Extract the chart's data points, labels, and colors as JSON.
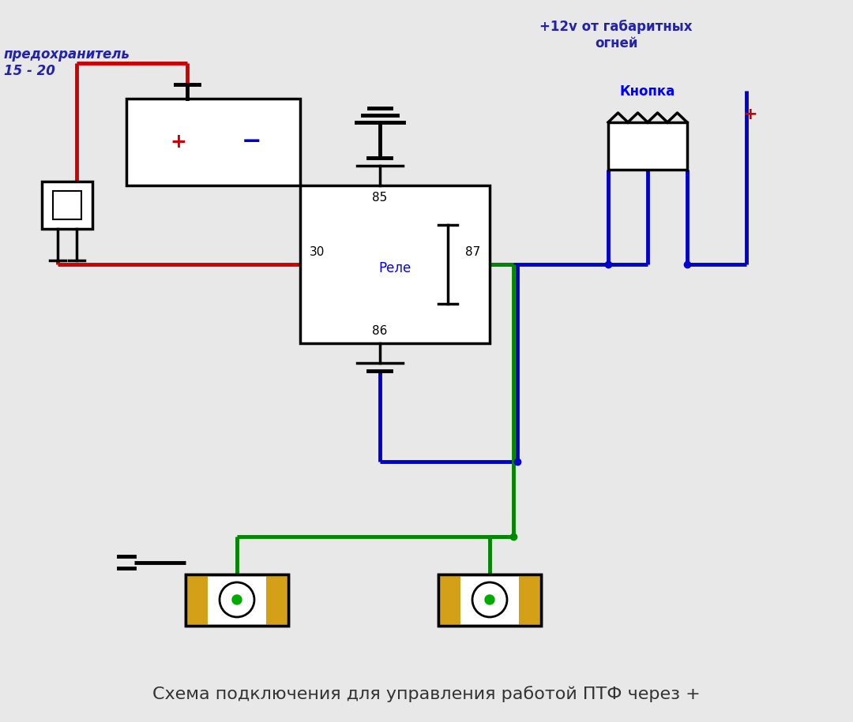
{
  "bg_color": "#e8e8e8",
  "title_text": "Схема подключения для управления работой ПТФ через +",
  "title_color": "#333333",
  "title_fontsize": 16,
  "label_predohranitel": "предохранитель\n15 - 20",
  "label_12v": "+12v от габаритных\nогней",
  "label_knopka": "Кнопка",
  "label_rele": "Реле",
  "label_85": "85",
  "label_86": "86",
  "label_30": "30",
  "label_87": "87",
  "red_color": "#cc0000",
  "blue_color": "#0000cc",
  "green_color": "#008800",
  "black_color": "#000000",
  "plus_color": "#cc0000",
  "minus_color": "#0000aa",
  "wire_lw": 3.5,
  "component_lw": 2.5
}
